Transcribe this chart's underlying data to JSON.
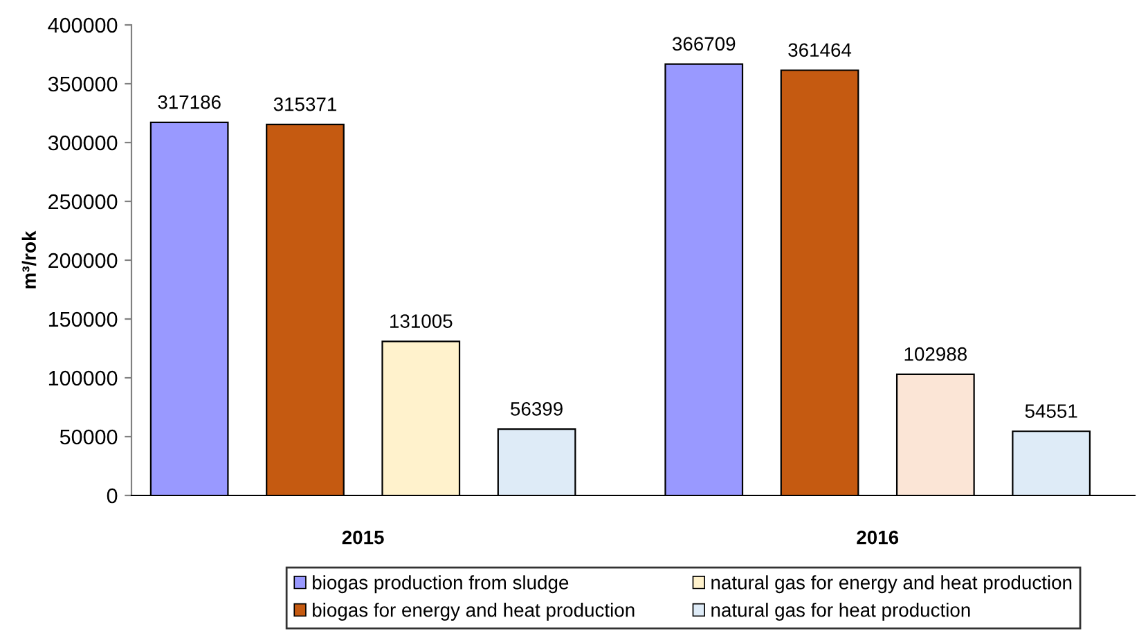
{
  "chart_data": {
    "type": "bar",
    "ylabel": "m³/rok",
    "categories": [
      "2015",
      "2016"
    ],
    "series": [
      {
        "name": "biogas production from sludge",
        "color": "#9999ff",
        "values": [
          317186,
          366709
        ]
      },
      {
        "name": "biogas for energy and heat production",
        "color": "#c55a11",
        "values": [
          315371,
          361464
        ]
      },
      {
        "name": "natural gas for energy and heat production",
        "color": "#fff2cc",
        "colors": [
          "#fff2cc",
          "#fbe5d6"
        ],
        "values": [
          131005,
          102988
        ]
      },
      {
        "name": "natural gas for heat production",
        "color": "#deebf7",
        "values": [
          56399,
          54551
        ]
      }
    ],
    "ylim": [
      0,
      400000
    ],
    "yticks": [
      0,
      50000,
      100000,
      150000,
      200000,
      250000,
      300000,
      350000,
      400000
    ],
    "data_labels": true,
    "grid": false,
    "legend": "bottom"
  }
}
